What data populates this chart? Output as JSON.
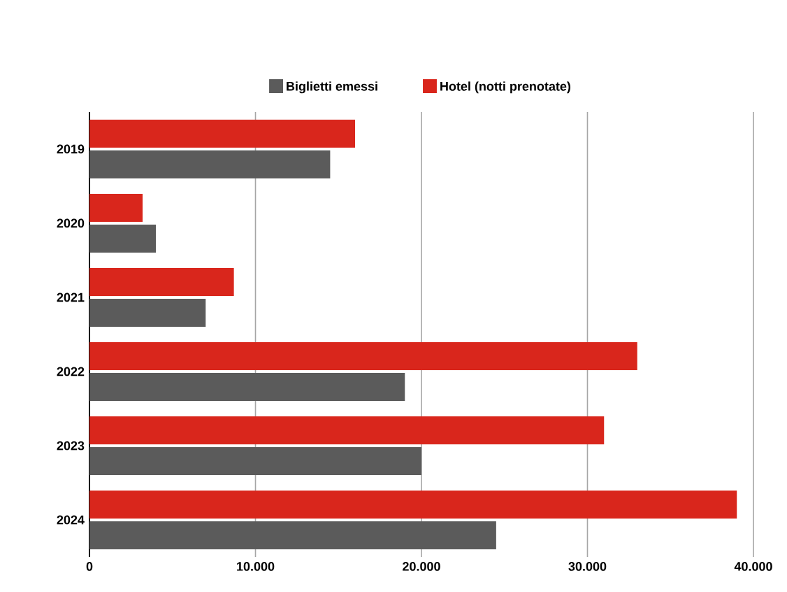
{
  "chart_data": {
    "type": "bar",
    "orientation": "horizontal",
    "categories": [
      "2019",
      "2020",
      "2021",
      "2022",
      "2023",
      "2024"
    ],
    "series": [
      {
        "name": "Biglietti emessi",
        "color": "#5b5b5b",
        "values": [
          14500,
          4000,
          7000,
          19000,
          20000,
          24500
        ]
      },
      {
        "name": "Hotel (notti prenotate)",
        "color": "#d9261c",
        "values": [
          16000,
          3200,
          8700,
          33000,
          31000,
          39000
        ]
      }
    ],
    "xlim": [
      0,
      40000
    ],
    "xticks": [
      0,
      {
        "value": 10000,
        "label": "10.000"
      },
      {
        "value": 20000,
        "label": "20.000"
      },
      {
        "value": 30000,
        "label": "30.000"
      },
      {
        "value": 40000,
        "label": "40.000"
      }
    ],
    "grid": "x",
    "legend": "top"
  }
}
